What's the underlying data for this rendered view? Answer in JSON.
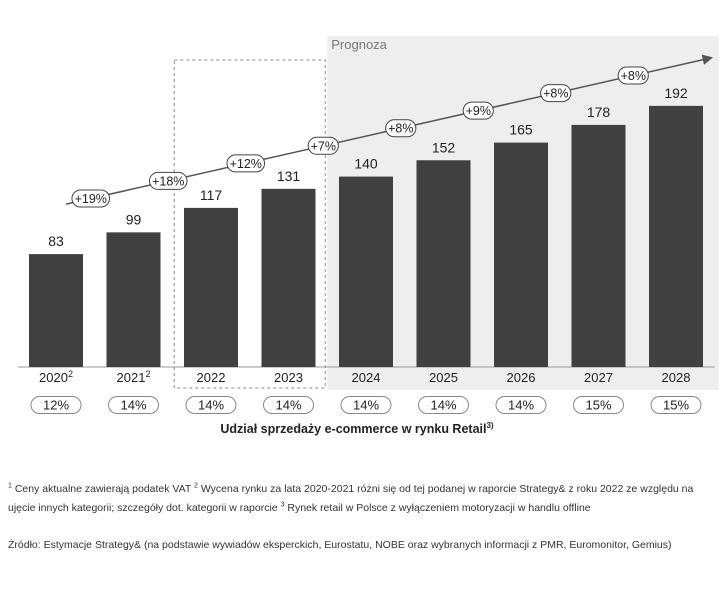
{
  "chart_data": {
    "type": "bar",
    "categories": [
      "2020",
      "2021",
      "2022",
      "2023",
      "2024",
      "2025",
      "2026",
      "2027",
      "2028"
    ],
    "category_superscripts": [
      "2",
      "2",
      "",
      "",
      "",
      "",
      "",
      "",
      ""
    ],
    "values": [
      83,
      99,
      117,
      131,
      140,
      152,
      165,
      178,
      192
    ],
    "growth_labels": [
      "+19%",
      "+18%",
      "+12%",
      "+7%",
      "+8%",
      "+9%",
      "+8%",
      "+8%"
    ],
    "share_values": [
      "12%",
      "14%",
      "14%",
      "14%",
      "14%",
      "14%",
      "14%",
      "15%",
      "15%"
    ],
    "share_title": "Udział sprzedaży e-commerce w rynku Retail",
    "share_title_sup": "3)",
    "forecast_label": "Prognoza",
    "forecast_from_index": 4,
    "highlight_indices": [
      2,
      3
    ],
    "ylim": [
      0,
      200
    ],
    "grid": false,
    "colors": {
      "bar": "#404040",
      "forecast_bg": "#eeeeee",
      "arrow": "#555555",
      "highlight_border": "#888888"
    }
  },
  "footnotes": {
    "sup1": "1",
    "note1": " Ceny aktualne zawierają podatek VAT ",
    "sup2": "2",
    "note2": " Wycena rynku za lata 2020-2021 różni się od tej podanej w raporcie Strategy& z roku 2022 ze względu na ujęcie innych kategorii; szczegóły dot. kategorii w raporcie ",
    "sup3": "3",
    "note3": " Rynek retail w Polsce z wyłączeniem motoryzacji w handlu offline",
    "source": "Źródło: Estymacje Strategy& (na podstawie wywiadów eksperckich, Eurostatu, NOBE oraz wybranych informacji z PMR, Euromonitor, Gemius)"
  }
}
